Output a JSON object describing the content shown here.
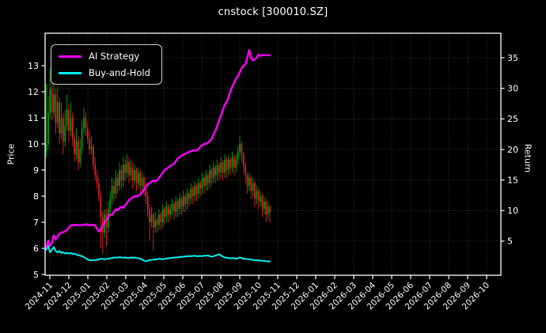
{
  "title": "cnstock [300010.SZ]",
  "colors": {
    "background": "#000000",
    "text": "#ffffff",
    "spine": "#ffffff",
    "grid": "#4f4f4f",
    "candle_up": "#0fa00f",
    "candle_down": "#e62222",
    "ai_strategy": "#ff00ff",
    "buy_and_hold": "#00f0f0"
  },
  "chart_data": {
    "type": "candlestick",
    "title": "cnstock [300010.SZ]",
    "symbol": "300010.SZ",
    "grid": {
      "style": "dotted",
      "horizontal": "right-axis-ticks",
      "vertical": "month-ticks"
    },
    "y_left": {
      "label": "Price",
      "ticks": [
        5,
        6,
        7,
        8,
        9,
        10,
        11,
        12,
        13
      ],
      "lim": [
        4.97,
        14.24
      ]
    },
    "y_right": {
      "label": "Return",
      "ticks": [
        5,
        10,
        15,
        20,
        25,
        30,
        35
      ],
      "lim": [
        -1.2,
        39.2
      ]
    },
    "x_tick_labels": [
      "2024-11",
      "2024-12",
      "2025-01",
      "2025-02",
      "2025-03",
      "2025-04",
      "2025-05",
      "2025-06",
      "2025-07",
      "2025-08",
      "2025-09",
      "2025-10",
      "2025-11",
      "2025-12",
      "2026-01",
      "2026-02",
      "2026-03",
      "2026-04",
      "2026-05",
      "2026-06",
      "2026-07",
      "2026-08",
      "2026-09",
      "2026-10"
    ],
    "data_range_shown": {
      "first": "2024-11",
      "last": "2025-11"
    },
    "legend": {
      "position": "upper-left",
      "entries": [
        {
          "label": "AI Strategy",
          "color": "#ff00ff"
        },
        {
          "label": "Buy-and-Hold",
          "color": "#00f0f0"
        }
      ]
    },
    "candles": {
      "up_color": "#0fa00f",
      "down_color": "#e62222",
      "ohlc": [
        [
          9.7,
          12.3,
          9.5,
          10.0
        ],
        [
          10.0,
          11.8,
          9.8,
          11.2
        ],
        [
          11.2,
          12.9,
          11.0,
          12.1
        ],
        [
          12.1,
          12.4,
          10.9,
          11.2
        ],
        [
          11.2,
          12.6,
          11.0,
          11.9
        ],
        [
          11.9,
          12.1,
          10.4,
          10.8
        ],
        [
          10.8,
          12.2,
          10.6,
          11.6
        ],
        [
          11.6,
          11.8,
          10.0,
          10.4
        ],
        [
          10.4,
          11.6,
          10.2,
          11.0
        ],
        [
          11.0,
          11.2,
          9.6,
          10.1
        ],
        [
          10.1,
          11.3,
          9.9,
          10.7
        ],
        [
          10.7,
          11.9,
          10.5,
          11.3
        ],
        [
          11.3,
          11.5,
          10.1,
          10.5
        ],
        [
          10.5,
          11.6,
          10.3,
          11.0
        ],
        [
          11.0,
          11.2,
          9.9,
          10.2
        ],
        [
          10.2,
          10.4,
          9.3,
          9.6
        ],
        [
          9.6,
          10.6,
          9.4,
          10.1
        ],
        [
          10.1,
          10.3,
          9.0,
          9.3
        ],
        [
          9.3,
          10.2,
          9.1,
          9.8
        ],
        [
          9.8,
          10.9,
          9.6,
          10.6
        ],
        [
          10.6,
          11.4,
          10.4,
          11.0
        ],
        [
          11.0,
          11.2,
          10.3,
          10.6
        ],
        [
          10.6,
          10.8,
          10.0,
          10.2
        ],
        [
          10.2,
          10.5,
          9.6,
          9.8
        ],
        [
          9.8,
          10.3,
          9.6,
          9.9
        ],
        [
          9.9,
          10.0,
          9.0,
          9.2
        ],
        [
          9.2,
          9.5,
          8.6,
          8.8
        ],
        [
          8.8,
          9.0,
          8.3,
          8.5
        ],
        [
          8.5,
          8.7,
          7.8,
          8.0
        ],
        [
          8.0,
          8.2,
          6.0,
          7.2
        ],
        [
          7.2,
          7.4,
          5.8,
          6.6
        ],
        [
          6.6,
          7.5,
          6.4,
          7.3
        ],
        [
          7.3,
          7.5,
          6.1,
          6.8
        ],
        [
          6.8,
          7.8,
          6.6,
          7.5
        ],
        [
          7.5,
          8.2,
          7.3,
          7.9
        ],
        [
          7.9,
          8.7,
          7.7,
          8.4
        ],
        [
          8.4,
          8.6,
          7.8,
          8.1
        ],
        [
          8.1,
          9.0,
          7.9,
          8.7
        ],
        [
          8.7,
          8.9,
          8.1,
          8.4
        ],
        [
          8.4,
          9.3,
          8.2,
          9.0
        ],
        [
          9.0,
          9.2,
          8.3,
          8.6
        ],
        [
          8.6,
          9.5,
          8.4,
          9.2
        ],
        [
          9.2,
          9.4,
          8.6,
          8.9
        ],
        [
          8.9,
          9.6,
          8.7,
          9.3
        ],
        [
          9.3,
          9.5,
          8.5,
          8.8
        ],
        [
          8.8,
          9.4,
          8.6,
          9.1
        ],
        [
          9.1,
          9.3,
          8.3,
          8.6
        ],
        [
          8.6,
          9.2,
          8.4,
          9.0
        ],
        [
          9.0,
          9.1,
          8.2,
          8.5
        ],
        [
          8.5,
          9.1,
          8.3,
          8.9
        ],
        [
          8.9,
          9.0,
          8.1,
          8.4
        ],
        [
          8.4,
          8.9,
          8.2,
          8.7
        ],
        [
          8.7,
          8.8,
          8.0,
          8.3
        ],
        [
          8.3,
          8.5,
          7.7,
          8.0
        ],
        [
          8.0,
          8.2,
          7.2,
          7.5
        ],
        [
          7.5,
          7.7,
          6.3,
          7.0
        ],
        [
          7.0,
          7.6,
          6.8,
          7.3
        ],
        [
          7.3,
          7.4,
          5.9,
          6.8
        ],
        [
          6.8,
          7.4,
          6.6,
          7.1
        ],
        [
          7.1,
          7.2,
          6.6,
          6.9
        ],
        [
          6.9,
          7.5,
          6.7,
          7.3
        ],
        [
          7.3,
          7.4,
          6.7,
          7.0
        ],
        [
          7.0,
          7.7,
          6.8,
          7.5
        ],
        [
          7.5,
          7.6,
          6.9,
          7.2
        ],
        [
          7.2,
          7.8,
          7.0,
          7.6
        ],
        [
          7.6,
          7.7,
          7.0,
          7.3
        ],
        [
          7.3,
          7.7,
          7.1,
          7.5
        ],
        [
          7.5,
          7.9,
          7.3,
          7.7
        ],
        [
          7.7,
          7.8,
          7.1,
          7.4
        ],
        [
          7.4,
          8.0,
          7.2,
          7.8
        ],
        [
          7.8,
          7.9,
          7.2,
          7.5
        ],
        [
          7.5,
          8.1,
          7.3,
          7.9
        ],
        [
          7.9,
          8.0,
          7.3,
          7.6
        ],
        [
          7.6,
          8.2,
          7.4,
          8.0
        ],
        [
          8.0,
          8.1,
          7.4,
          7.7
        ],
        [
          7.7,
          8.3,
          7.5,
          8.1
        ],
        [
          8.1,
          8.2,
          7.6,
          7.9
        ],
        [
          7.9,
          8.5,
          7.7,
          8.3
        ],
        [
          8.3,
          8.4,
          7.7,
          8.0
        ],
        [
          8.0,
          8.6,
          7.8,
          8.4
        ],
        [
          8.4,
          8.5,
          7.8,
          8.1
        ],
        [
          8.1,
          8.7,
          7.9,
          8.5
        ],
        [
          8.5,
          8.6,
          8.0,
          8.3
        ],
        [
          8.3,
          8.9,
          8.1,
          8.7
        ],
        [
          8.7,
          8.8,
          8.1,
          8.4
        ],
        [
          8.4,
          9.0,
          8.2,
          8.8
        ],
        [
          8.8,
          8.9,
          8.2,
          8.5
        ],
        [
          8.5,
          9.2,
          8.3,
          9.0
        ],
        [
          9.0,
          9.1,
          8.4,
          8.7
        ],
        [
          8.7,
          9.3,
          8.5,
          9.1
        ],
        [
          9.1,
          9.2,
          8.5,
          8.8
        ],
        [
          8.8,
          9.4,
          8.6,
          9.2
        ],
        [
          9.2,
          9.3,
          8.6,
          8.9
        ],
        [
          8.9,
          9.5,
          8.7,
          9.3
        ],
        [
          9.3,
          9.4,
          8.6,
          8.9
        ],
        [
          8.9,
          9.6,
          8.7,
          9.4
        ],
        [
          9.4,
          9.5,
          8.7,
          9.0
        ],
        [
          9.0,
          9.6,
          8.8,
          9.4
        ],
        [
          9.4,
          9.5,
          8.8,
          9.1
        ],
        [
          9.1,
          9.7,
          8.9,
          9.5
        ],
        [
          9.5,
          9.6,
          8.8,
          9.1
        ],
        [
          9.1,
          9.6,
          8.9,
          9.4
        ],
        [
          9.4,
          9.9,
          9.2,
          9.7
        ],
        [
          9.7,
          10.3,
          9.5,
          10.0
        ],
        [
          10.0,
          10.1,
          9.3,
          9.6
        ],
        [
          9.6,
          9.7,
          8.9,
          9.2
        ],
        [
          9.2,
          9.3,
          8.5,
          8.8
        ],
        [
          8.8,
          8.9,
          8.1,
          8.4
        ],
        [
          8.4,
          8.9,
          8.2,
          8.7
        ],
        [
          8.7,
          8.8,
          7.9,
          8.2
        ],
        [
          8.2,
          8.7,
          8.0,
          8.5
        ],
        [
          8.5,
          8.6,
          7.6,
          7.9
        ],
        [
          7.9,
          8.4,
          7.7,
          8.2
        ],
        [
          8.2,
          8.3,
          7.5,
          7.8
        ],
        [
          7.8,
          8.2,
          7.6,
          8.0
        ],
        [
          8.0,
          8.1,
          7.2,
          7.5
        ],
        [
          7.5,
          8.0,
          7.3,
          7.8
        ],
        [
          7.8,
          7.9,
          7.0,
          7.3
        ],
        [
          7.3,
          7.8,
          7.1,
          7.6
        ],
        [
          7.6,
          7.7,
          7.0,
          7.4
        ]
      ]
    },
    "series": [
      {
        "name": "AI Strategy",
        "color": "#ff00ff",
        "width": 2.4,
        "values": [
          6.05,
          6.3,
          6.1,
          6.2,
          6.5,
          6.35,
          6.45,
          6.55,
          6.6,
          6.62,
          6.65,
          6.7,
          6.8,
          6.88,
          6.9,
          6.88,
          6.9,
          6.9,
          6.88,
          6.9,
          6.9,
          6.92,
          6.9,
          6.88,
          6.9,
          6.9,
          6.88,
          6.75,
          6.65,
          6.72,
          6.85,
          7.0,
          7.1,
          7.2,
          7.3,
          7.28,
          7.4,
          7.5,
          7.45,
          7.55,
          7.6,
          7.55,
          7.65,
          7.75,
          7.85,
          7.9,
          7.95,
          8.0,
          7.98,
          8.02,
          8.05,
          8.15,
          8.25,
          8.35,
          8.45,
          8.5,
          8.55,
          8.6,
          8.58,
          8.6,
          8.7,
          8.8,
          8.9,
          9.0,
          9.05,
          9.1,
          9.15,
          9.2,
          9.25,
          9.35,
          9.45,
          9.5,
          9.55,
          9.6,
          9.62,
          9.65,
          9.7,
          9.72,
          9.75,
          9.74,
          9.76,
          9.8,
          9.9,
          9.95,
          10.0,
          10.0,
          10.05,
          10.1,
          10.2,
          10.35,
          10.5,
          10.7,
          10.9,
          11.1,
          11.3,
          11.5,
          11.6,
          11.8,
          12.0,
          12.2,
          12.35,
          12.5,
          12.6,
          12.75,
          12.9,
          13.0,
          13.05,
          13.3,
          13.6,
          13.3,
          13.2,
          13.25,
          13.3,
          13.42,
          13.38,
          13.4,
          13.4,
          13.4,
          13.4,
          13.4
        ]
      },
      {
        "name": "Buy-and-Hold",
        "color": "#00f0f0",
        "width": 2.0,
        "values": [
          5.95,
          6.1,
          5.85,
          5.95,
          6.05,
          5.9,
          5.85,
          5.9,
          5.82,
          5.85,
          5.8,
          5.83,
          5.8,
          5.82,
          5.78,
          5.8,
          5.76,
          5.74,
          5.72,
          5.7,
          5.66,
          5.62,
          5.57,
          5.55,
          5.54,
          5.55,
          5.55,
          5.56,
          5.58,
          5.6,
          5.6,
          5.58,
          5.6,
          5.6,
          5.62,
          5.63,
          5.65,
          5.64,
          5.65,
          5.66,
          5.65,
          5.64,
          5.65,
          5.63,
          5.64,
          5.65,
          5.64,
          5.65,
          5.63,
          5.62,
          5.6,
          5.57,
          5.53,
          5.5,
          5.53,
          5.55,
          5.56,
          5.57,
          5.58,
          5.58,
          5.6,
          5.6,
          5.58,
          5.6,
          5.61,
          5.62,
          5.63,
          5.64,
          5.65,
          5.65,
          5.66,
          5.67,
          5.68,
          5.68,
          5.69,
          5.7,
          5.7,
          5.7,
          5.71,
          5.72,
          5.7,
          5.7,
          5.71,
          5.7,
          5.72,
          5.72,
          5.73,
          5.7,
          5.68,
          5.7,
          5.72,
          5.75,
          5.77,
          5.73,
          5.68,
          5.65,
          5.64,
          5.63,
          5.62,
          5.63,
          5.62,
          5.6,
          5.62,
          5.65,
          5.63,
          5.6,
          5.6,
          5.59,
          5.58,
          5.57,
          5.56,
          5.55,
          5.55,
          5.54,
          5.53,
          5.52,
          5.52,
          5.51,
          5.5,
          5.5
        ]
      }
    ]
  }
}
